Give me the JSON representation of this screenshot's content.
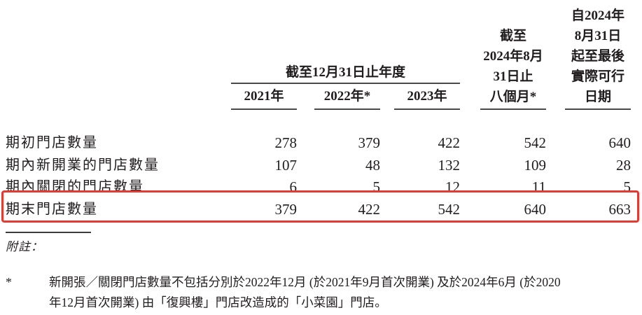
{
  "table": {
    "col_group_header": "截至12月31日止年度",
    "year_columns": [
      "2021年",
      "2022年*",
      "2023年"
    ],
    "col4_header_lines": [
      "截至",
      "2024年8月",
      "31日止",
      "八個月*"
    ],
    "col5_header_lines": [
      "自2024年",
      "8月31日",
      "起至最後",
      "實際可行",
      "日期"
    ],
    "rows": [
      {
        "label": "期初門店數量",
        "values": [
          "278",
          "379",
          "422",
          "542",
          "640"
        ]
      },
      {
        "label": "期內新開業的門店數量",
        "values": [
          "107",
          "48",
          "132",
          "109",
          "28"
        ]
      },
      {
        "label": "期內關閉的門店數量",
        "values": [
          "6",
          "5",
          "12",
          "11",
          "5"
        ]
      },
      {
        "label": "期末門店數量",
        "values": [
          "379",
          "422",
          "542",
          "640",
          "663"
        ],
        "highlighted": true
      }
    ],
    "highlight_color": "#e23b33"
  },
  "notes": {
    "label": "附註：",
    "footnote_marker": "*",
    "footnote_lines": [
      "新開張／關閉門店數量不包括分別於2022年12月 (於2021年9月首次開業) 及於2024年6月 (於2020",
      "年12月首次開業) 由「復興樓」門店改造成的「小菜園」門店。"
    ]
  }
}
